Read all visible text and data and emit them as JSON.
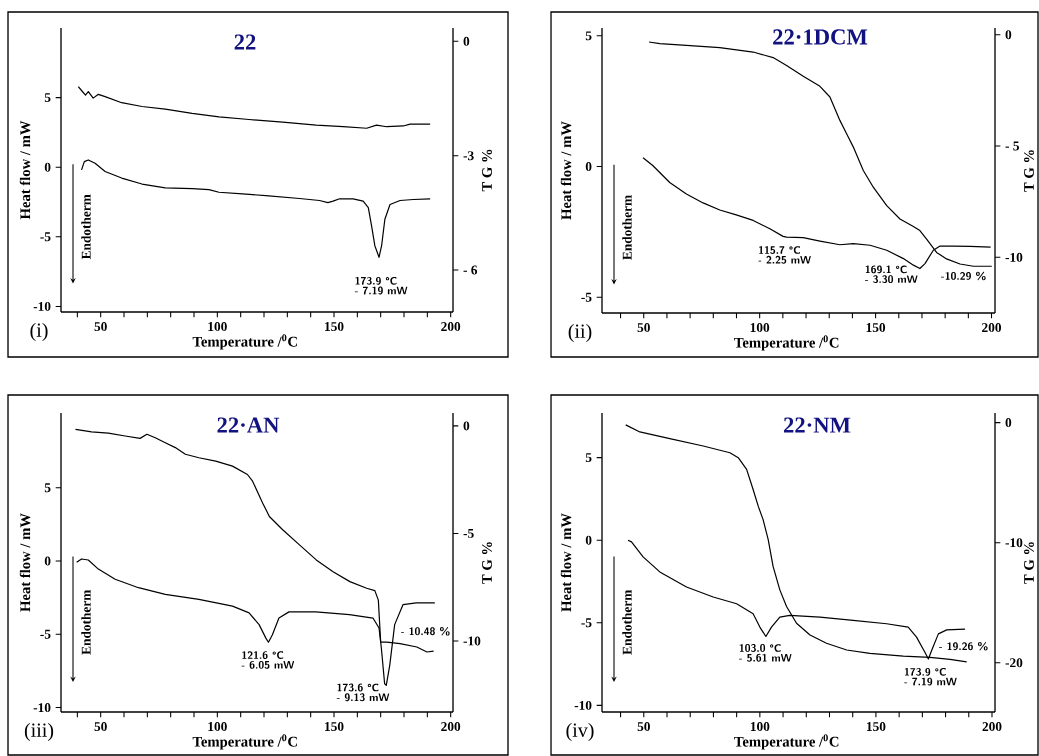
{
  "chart_data": [
    {
      "type": "line",
      "title": "22",
      "xlabel": "Temperature /$^{0}$C",
      "ylabel": "Heat flow / mW",
      "y2label": "T G %",
      "xlim": [
        33,
        201
      ],
      "xticks": [
        {
          "value": 40,
          "label": null
        },
        50,
        {
          "value": 60,
          "label": null
        },
        {
          "value": 70,
          "label": null
        },
        {
          "value": 80,
          "label": null
        },
        {
          "value": 90,
          "label": null
        },
        100,
        {
          "value": 110,
          "label": null
        },
        {
          "value": 120,
          "label": null
        },
        {
          "value": 130,
          "label": null
        },
        {
          "value": 140,
          "label": null
        },
        150,
        {
          "value": 160,
          "label": null
        },
        {
          "value": 170,
          "label": null
        },
        {
          "value": 180,
          "label": null
        },
        {
          "value": 190,
          "label": null
        },
        200
      ],
      "ylim": [
        -10.4,
        10
      ],
      "yticks": [
        -10,
        -5,
        0,
        5
      ],
      "y2lim": [
        -7.1,
        0.35
      ],
      "y2ticks": [
        {
          "value": -6,
          "label": "- 6"
        },
        -3,
        0
      ],
      "annotations": [
        "(i)",
        "Endotherm",
        {
          "text": "173.9 °C",
          "x": 169.3,
          "y": -6.47
        },
        "- 7.19 mW"
      ],
      "series": [
        {
          "color": "#000000",
          "x": [
            41.8,
            43,
            44.7,
            47.6,
            51.9,
            59,
            67.7,
            77.7,
            89.2,
            96.4,
            100.7,
            110.8,
            120.8,
            135.2,
            143.8,
            147.4,
            149.6,
            152.4,
            158.2,
            162.5,
            164.7,
            166.1,
            167.5,
            169.3,
            170.4,
            171.8,
            174,
            178.3,
            184,
            191.2
          ],
          "values": [
            -0.19,
            0.4,
            0.52,
            0.28,
            -0.31,
            -0.78,
            -1.21,
            -1.49,
            -1.54,
            -1.61,
            -1.8,
            -1.92,
            -2.04,
            -2.25,
            -2.39,
            -2.54,
            -2.44,
            -2.27,
            -2.27,
            -2.44,
            -2.91,
            -4.22,
            -5.64,
            -6.47,
            -5.64,
            -3.74,
            -2.68,
            -2.39,
            -2.32,
            -2.27
          ]
        },
        {
          "axis": "y2",
          "color": "#000000",
          "x": [
            40.4,
            41.8,
            43.5,
            44.7,
            46.8,
            49,
            51.9,
            59,
            67.7,
            77.7,
            89.2,
            100.7,
            113.6,
            128,
            142.4,
            153.9,
            164,
            168.2,
            172.6,
            179.7,
            182.6,
            191.2
          ],
          "values": [
            -1.19,
            -1.29,
            -1.41,
            -1.32,
            -1.49,
            -1.39,
            -1.45,
            -1.61,
            -1.71,
            -1.78,
            -1.89,
            -1.98,
            -2.05,
            -2.12,
            -2.2,
            -2.24,
            -2.28,
            -2.2,
            -2.24,
            -2.22,
            -2.17,
            -2.17
          ]
        }
      ]
    },
    {
      "type": "line",
      "title": "22·1DCM",
      "xlabel": "Temperature /$^{0}$C",
      "ylabel": "Heat flow / mW",
      "y2label": "T G %",
      "xlim": [
        32,
        201.5
      ],
      "xticks": [
        {
          "value": 40,
          "label": null
        },
        50,
        {
          "value": 60,
          "label": null
        },
        {
          "value": 70,
          "label": null
        },
        {
          "value": 80,
          "label": null
        },
        {
          "value": 90,
          "label": null
        },
        100,
        {
          "value": 110,
          "label": null
        },
        {
          "value": 120,
          "label": null
        },
        {
          "value": 130,
          "label": null
        },
        {
          "value": 140,
          "label": null
        },
        150,
        {
          "value": 160,
          "label": null
        },
        {
          "value": 170,
          "label": null
        },
        {
          "value": 180,
          "label": null
        },
        {
          "value": 190,
          "label": null
        },
        200
      ],
      "ylim": [
        -5.6,
        5.3
      ],
      "yticks": [
        -5,
        0,
        5
      ],
      "y2lim": [
        -12.5,
        0.3
      ],
      "y2ticks": [
        -10,
        {
          "value": -5,
          "label": "- 5"
        },
        0
      ],
      "annotations": [
        "(ii)",
        "Endotherm",
        {
          "text": "115.7 °C",
          "x": 111.6,
          "y": -2.7
        },
        "- 2.25 mW",
        {
          "text": "169.1 °C",
          "x": 169.1,
          "y": -3.9
        },
        "- 3.30 mW",
        "-10.29 %"
      ],
      "series": [
        {
          "color": "#000000",
          "x": [
            49.7,
            54,
            61.2,
            68.4,
            75.6,
            82.8,
            89.9,
            97.2,
            104.4,
            110.1,
            111.6,
            118.8,
            126,
            134.6,
            140.4,
            147.6,
            154.8,
            162,
            166.3,
            169.1,
            171.3,
            174.9,
            177.8,
            183.5,
            190.7,
            199.6
          ],
          "values": [
            0.34,
            0.03,
            -0.61,
            -1.05,
            -1.39,
            -1.66,
            -1.85,
            -2.06,
            -2.38,
            -2.67,
            -2.7,
            -2.72,
            -2.85,
            -2.99,
            -2.95,
            -3.01,
            -3.2,
            -3.52,
            -3.77,
            -3.9,
            -3.71,
            -3.2,
            -3.04,
            -3.04,
            -3.05,
            -3.08
          ]
        },
        {
          "axis": "y2",
          "color": "#000000",
          "x": [
            52.3,
            56.9,
            68.4,
            82.8,
            97.2,
            105.8,
            111.6,
            118.8,
            126,
            130.3,
            134.6,
            137.5,
            140.4,
            144.7,
            149,
            154.8,
            160.5,
            166.3,
            169.1,
            172,
            176.3,
            180.6,
            186.4,
            192.2,
            200.1
          ],
          "values": [
            -0.33,
            -0.4,
            -0.48,
            -0.58,
            -0.78,
            -1.03,
            -1.38,
            -1.87,
            -2.32,
            -2.8,
            -3.85,
            -4.45,
            -5.05,
            -6.1,
            -6.85,
            -7.68,
            -8.28,
            -8.62,
            -8.8,
            -9.18,
            -9.78,
            -10.07,
            -10.3,
            -10.4,
            -10.4
          ]
        }
      ]
    },
    {
      "type": "line",
      "title": "22·AN",
      "xlabel": "Temperature /$^{0}$C",
      "ylabel": "Heat flow / mW",
      "y2label": "T G %",
      "xlim": [
        33,
        201
      ],
      "xticks": [
        {
          "value": 40,
          "label": null
        },
        50,
        {
          "value": 60,
          "label": null
        },
        {
          "value": 70,
          "label": null
        },
        {
          "value": 80,
          "label": null
        },
        {
          "value": 90,
          "label": null
        },
        100,
        {
          "value": 110,
          "label": null
        },
        {
          "value": 120,
          "label": null
        },
        {
          "value": 130,
          "label": null
        },
        {
          "value": 140,
          "label": null
        },
        150,
        {
          "value": 160,
          "label": null
        },
        {
          "value": 170,
          "label": null
        },
        {
          "value": 180,
          "label": null
        },
        {
          "value": 190,
          "label": null
        },
        200
      ],
      "ylim": [
        -10.3,
        10.1
      ],
      "yticks": [
        -10,
        -5,
        0,
        5
      ],
      "y2lim": [
        -13.3,
        0.6
      ],
      "y2ticks": [
        -10,
        -5,
        0
      ],
      "annotations": [
        "(iii)",
        "Endotherm",
        {
          "text": "121.6 °C",
          "x": 121.9,
          "y": -5.54
        },
        "- 6.05 mW",
        {
          "text": "173.6 °C",
          "x": 172.4,
          "y": -8.48
        },
        "- 9.13 mW",
        "- 10.48 %"
      ],
      "series": [
        {
          "color": "#000000",
          "x": [
            39.7,
            41.8,
            44.7,
            49,
            56.2,
            66.2,
            77.7,
            92.1,
            106.5,
            113.6,
            117.9,
            120.8,
            121.9,
            123.6,
            126.4,
            130.7,
            142.2,
            156.6,
            166.7,
            169.3,
            170.3,
            171.7,
            172.4,
            173.9,
            176,
            179.6,
            185.3,
            193.2
          ],
          "values": [
            -0.09,
            0.14,
            0.07,
            -0.55,
            -1.24,
            -1.82,
            -2.28,
            -2.62,
            -3.08,
            -3.54,
            -4.34,
            -5.26,
            -5.54,
            -5.03,
            -3.89,
            -3.47,
            -3.47,
            -3.66,
            -3.89,
            -4.57,
            -5.95,
            -8.37,
            -8.48,
            -7.1,
            -4.34,
            -2.97,
            -2.85,
            -2.85
          ]
        },
        {
          "axis": "y2",
          "color": "#000000",
          "x": [
            39.2,
            46.1,
            53.3,
            60.5,
            66.9,
            69.8,
            73.4,
            77.7,
            82,
            86.3,
            92.1,
            99.3,
            106.5,
            112.9,
            115.1,
            119.4,
            122.3,
            128,
            135.2,
            142.4,
            149.6,
            156.8,
            164,
            167.5,
            169,
            170,
            172.6,
            178.3,
            185.5,
            189.8,
            192.7
          ],
          "values": [
            -0.16,
            -0.28,
            -0.34,
            -0.47,
            -0.58,
            -0.39,
            -0.55,
            -0.78,
            -1.01,
            -1.32,
            -1.48,
            -1.64,
            -1.87,
            -2.26,
            -2.57,
            -3.58,
            -4.21,
            -4.83,
            -5.53,
            -6.23,
            -6.78,
            -7.24,
            -7.55,
            -7.66,
            -8.1,
            -10.05,
            -10.05,
            -10.12,
            -10.28,
            -10.51,
            -10.47
          ]
        }
      ]
    },
    {
      "type": "line",
      "title": "22·NM",
      "xlabel": "Temperature /$^{0}$C",
      "ylabel": "Heat flow / mW",
      "y2label": "T G %",
      "xlim": [
        32,
        201.3
      ],
      "xticks": [
        {
          "value": 40,
          "label": null
        },
        50,
        {
          "value": 60,
          "label": null
        },
        {
          "value": 70,
          "label": null
        },
        {
          "value": 80,
          "label": null
        },
        {
          "value": 90,
          "label": null
        },
        100,
        {
          "value": 110,
          "label": null
        },
        {
          "value": 120,
          "label": null
        },
        {
          "value": 130,
          "label": null
        },
        {
          "value": 140,
          "label": null
        },
        150,
        {
          "value": 160,
          "label": null
        },
        {
          "value": 170,
          "label": null
        },
        {
          "value": 180,
          "label": null
        },
        {
          "value": 190,
          "label": null
        },
        200
      ],
      "ylim": [
        -10.4,
        7.7
      ],
      "yticks": [
        -10,
        -5,
        0,
        5
      ],
      "y2lim": [
        -24.1,
        0.8
      ],
      "y2ticks": [
        -20,
        -10,
        0
      ],
      "annotations": [
        "(iv)",
        "Endotherm",
        {
          "text": "103.0 °C",
          "x": 102.6,
          "y": -5.83
        },
        "- 5.61 mW",
        {
          "text": "173.9 °C",
          "x": 172.6,
          "y": -7.19
        },
        "- 7.19 mW",
        "- 19.26 %"
      ],
      "series": [
        {
          "color": "#000000",
          "x": [
            43.2,
            44.7,
            49.7,
            56.9,
            68.4,
            79.9,
            90,
            97.1,
            100,
            102.6,
            105,
            108.6,
            112.9,
            125.9,
            140.2,
            154.6,
            163.9,
            167.5,
            171.1,
            172.6,
            174,
            176.9,
            180.5,
            188.4
          ],
          "values": [
            0,
            -0.1,
            -1.01,
            -1.92,
            -2.83,
            -3.44,
            -3.85,
            -4.45,
            -5.26,
            -5.83,
            -5.26,
            -4.66,
            -4.55,
            -4.66,
            -4.86,
            -5.06,
            -5.26,
            -5.87,
            -6.78,
            -7.19,
            -6.68,
            -5.67,
            -5.43,
            -5.38
          ]
        },
        {
          "axis": "y2",
          "color": "#000000",
          "x": [
            42.2,
            48.3,
            61.2,
            75.6,
            87.1,
            90.7,
            94.3,
            97.1,
            99.3,
            101.4,
            103.6,
            105.7,
            108.6,
            111.5,
            115.8,
            121.6,
            128.7,
            137.4,
            147.4,
            161.8,
            173.3,
            181.9,
            189.1
          ],
          "values": [
            -0.19,
            -0.78,
            -1.34,
            -1.95,
            -2.51,
            -2.92,
            -3.9,
            -5.57,
            -6.96,
            -8.08,
            -9.75,
            -11.98,
            -13.93,
            -15.32,
            -16.71,
            -17.69,
            -18.38,
            -18.94,
            -19.22,
            -19.44,
            -19.55,
            -19.72,
            -19.92
          ]
        }
      ]
    }
  ]
}
